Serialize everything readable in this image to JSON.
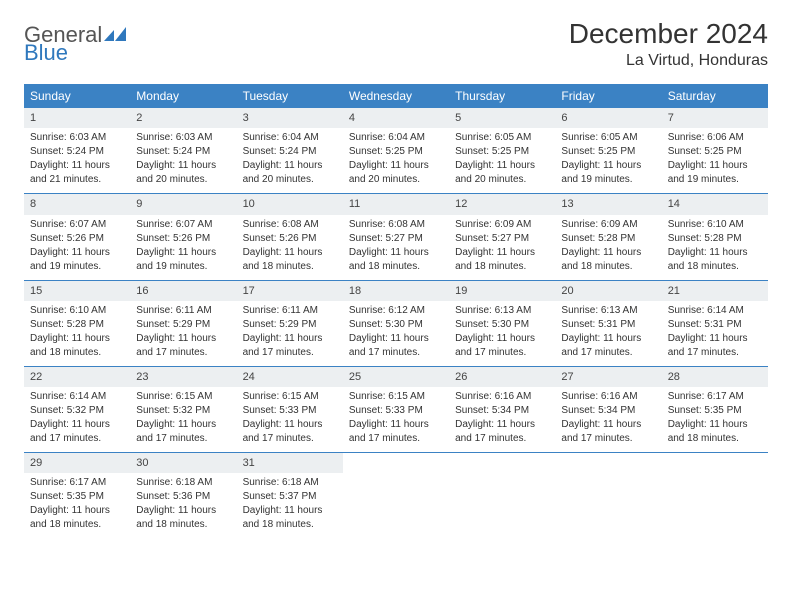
{
  "brand": {
    "name_part1": "General",
    "name_part2": "Blue",
    "text_color": "#555555",
    "accent_color": "#2f78bd"
  },
  "header": {
    "month_title": "December 2024",
    "location": "La Virtud, Honduras"
  },
  "style": {
    "header_bg": "#3b82c4",
    "header_text": "#ffffff",
    "daynum_bg": "#eceff1",
    "border_color": "#3b82c4",
    "body_text": "#333333",
    "font_family": "Arial",
    "title_fontsize": 28,
    "location_fontsize": 16,
    "header_fontsize": 12,
    "cell_fontsize": 10
  },
  "day_labels": [
    "Sunday",
    "Monday",
    "Tuesday",
    "Wednesday",
    "Thursday",
    "Friday",
    "Saturday"
  ],
  "weeks": [
    [
      {
        "num": "1",
        "sunrise": "Sunrise: 6:03 AM",
        "sunset": "Sunset: 5:24 PM",
        "daylight1": "Daylight: 11 hours",
        "daylight2": "and 21 minutes."
      },
      {
        "num": "2",
        "sunrise": "Sunrise: 6:03 AM",
        "sunset": "Sunset: 5:24 PM",
        "daylight1": "Daylight: 11 hours",
        "daylight2": "and 20 minutes."
      },
      {
        "num": "3",
        "sunrise": "Sunrise: 6:04 AM",
        "sunset": "Sunset: 5:24 PM",
        "daylight1": "Daylight: 11 hours",
        "daylight2": "and 20 minutes."
      },
      {
        "num": "4",
        "sunrise": "Sunrise: 6:04 AM",
        "sunset": "Sunset: 5:25 PM",
        "daylight1": "Daylight: 11 hours",
        "daylight2": "and 20 minutes."
      },
      {
        "num": "5",
        "sunrise": "Sunrise: 6:05 AM",
        "sunset": "Sunset: 5:25 PM",
        "daylight1": "Daylight: 11 hours",
        "daylight2": "and 20 minutes."
      },
      {
        "num": "6",
        "sunrise": "Sunrise: 6:05 AM",
        "sunset": "Sunset: 5:25 PM",
        "daylight1": "Daylight: 11 hours",
        "daylight2": "and 19 minutes."
      },
      {
        "num": "7",
        "sunrise": "Sunrise: 6:06 AM",
        "sunset": "Sunset: 5:25 PM",
        "daylight1": "Daylight: 11 hours",
        "daylight2": "and 19 minutes."
      }
    ],
    [
      {
        "num": "8",
        "sunrise": "Sunrise: 6:07 AM",
        "sunset": "Sunset: 5:26 PM",
        "daylight1": "Daylight: 11 hours",
        "daylight2": "and 19 minutes."
      },
      {
        "num": "9",
        "sunrise": "Sunrise: 6:07 AM",
        "sunset": "Sunset: 5:26 PM",
        "daylight1": "Daylight: 11 hours",
        "daylight2": "and 19 minutes."
      },
      {
        "num": "10",
        "sunrise": "Sunrise: 6:08 AM",
        "sunset": "Sunset: 5:26 PM",
        "daylight1": "Daylight: 11 hours",
        "daylight2": "and 18 minutes."
      },
      {
        "num": "11",
        "sunrise": "Sunrise: 6:08 AM",
        "sunset": "Sunset: 5:27 PM",
        "daylight1": "Daylight: 11 hours",
        "daylight2": "and 18 minutes."
      },
      {
        "num": "12",
        "sunrise": "Sunrise: 6:09 AM",
        "sunset": "Sunset: 5:27 PM",
        "daylight1": "Daylight: 11 hours",
        "daylight2": "and 18 minutes."
      },
      {
        "num": "13",
        "sunrise": "Sunrise: 6:09 AM",
        "sunset": "Sunset: 5:28 PM",
        "daylight1": "Daylight: 11 hours",
        "daylight2": "and 18 minutes."
      },
      {
        "num": "14",
        "sunrise": "Sunrise: 6:10 AM",
        "sunset": "Sunset: 5:28 PM",
        "daylight1": "Daylight: 11 hours",
        "daylight2": "and 18 minutes."
      }
    ],
    [
      {
        "num": "15",
        "sunrise": "Sunrise: 6:10 AM",
        "sunset": "Sunset: 5:28 PM",
        "daylight1": "Daylight: 11 hours",
        "daylight2": "and 18 minutes."
      },
      {
        "num": "16",
        "sunrise": "Sunrise: 6:11 AM",
        "sunset": "Sunset: 5:29 PM",
        "daylight1": "Daylight: 11 hours",
        "daylight2": "and 17 minutes."
      },
      {
        "num": "17",
        "sunrise": "Sunrise: 6:11 AM",
        "sunset": "Sunset: 5:29 PM",
        "daylight1": "Daylight: 11 hours",
        "daylight2": "and 17 minutes."
      },
      {
        "num": "18",
        "sunrise": "Sunrise: 6:12 AM",
        "sunset": "Sunset: 5:30 PM",
        "daylight1": "Daylight: 11 hours",
        "daylight2": "and 17 minutes."
      },
      {
        "num": "19",
        "sunrise": "Sunrise: 6:13 AM",
        "sunset": "Sunset: 5:30 PM",
        "daylight1": "Daylight: 11 hours",
        "daylight2": "and 17 minutes."
      },
      {
        "num": "20",
        "sunrise": "Sunrise: 6:13 AM",
        "sunset": "Sunset: 5:31 PM",
        "daylight1": "Daylight: 11 hours",
        "daylight2": "and 17 minutes."
      },
      {
        "num": "21",
        "sunrise": "Sunrise: 6:14 AM",
        "sunset": "Sunset: 5:31 PM",
        "daylight1": "Daylight: 11 hours",
        "daylight2": "and 17 minutes."
      }
    ],
    [
      {
        "num": "22",
        "sunrise": "Sunrise: 6:14 AM",
        "sunset": "Sunset: 5:32 PM",
        "daylight1": "Daylight: 11 hours",
        "daylight2": "and 17 minutes."
      },
      {
        "num": "23",
        "sunrise": "Sunrise: 6:15 AM",
        "sunset": "Sunset: 5:32 PM",
        "daylight1": "Daylight: 11 hours",
        "daylight2": "and 17 minutes."
      },
      {
        "num": "24",
        "sunrise": "Sunrise: 6:15 AM",
        "sunset": "Sunset: 5:33 PM",
        "daylight1": "Daylight: 11 hours",
        "daylight2": "and 17 minutes."
      },
      {
        "num": "25",
        "sunrise": "Sunrise: 6:15 AM",
        "sunset": "Sunset: 5:33 PM",
        "daylight1": "Daylight: 11 hours",
        "daylight2": "and 17 minutes."
      },
      {
        "num": "26",
        "sunrise": "Sunrise: 6:16 AM",
        "sunset": "Sunset: 5:34 PM",
        "daylight1": "Daylight: 11 hours",
        "daylight2": "and 17 minutes."
      },
      {
        "num": "27",
        "sunrise": "Sunrise: 6:16 AM",
        "sunset": "Sunset: 5:34 PM",
        "daylight1": "Daylight: 11 hours",
        "daylight2": "and 17 minutes."
      },
      {
        "num": "28",
        "sunrise": "Sunrise: 6:17 AM",
        "sunset": "Sunset: 5:35 PM",
        "daylight1": "Daylight: 11 hours",
        "daylight2": "and 18 minutes."
      }
    ],
    [
      {
        "num": "29",
        "sunrise": "Sunrise: 6:17 AM",
        "sunset": "Sunset: 5:35 PM",
        "daylight1": "Daylight: 11 hours",
        "daylight2": "and 18 minutes."
      },
      {
        "num": "30",
        "sunrise": "Sunrise: 6:18 AM",
        "sunset": "Sunset: 5:36 PM",
        "daylight1": "Daylight: 11 hours",
        "daylight2": "and 18 minutes."
      },
      {
        "num": "31",
        "sunrise": "Sunrise: 6:18 AM",
        "sunset": "Sunset: 5:37 PM",
        "daylight1": "Daylight: 11 hours",
        "daylight2": "and 18 minutes."
      },
      null,
      null,
      null,
      null
    ]
  ]
}
